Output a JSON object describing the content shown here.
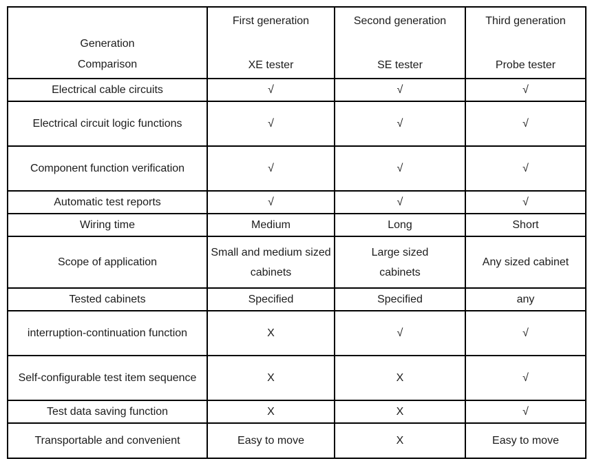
{
  "table": {
    "header": {
      "corner_line1": "Generation",
      "corner_line2": "Comparison",
      "columns": [
        {
          "generation": "First generation",
          "tester": "XE tester"
        },
        {
          "generation": "Second generation",
          "tester": "SE tester"
        },
        {
          "generation": "Third generation",
          "tester": "Probe tester"
        }
      ]
    },
    "glyphs": {
      "supported": "√",
      "unsupported": "X"
    },
    "rows": [
      {
        "feature": "Electrical cable circuits",
        "values": [
          "√",
          "√",
          "√"
        ]
      },
      {
        "feature": "Electrical circuit logic functions",
        "values": [
          "√",
          "√",
          "√"
        ]
      },
      {
        "feature": "Component function verification",
        "values": [
          "√",
          "√",
          "√"
        ]
      },
      {
        "feature": "Automatic test reports",
        "values": [
          "√",
          "√",
          "√"
        ]
      },
      {
        "feature": "Wiring time",
        "values": [
          "Medium",
          "Long",
          "Short"
        ]
      },
      {
        "feature": "Scope of application",
        "values": [
          "Small and medium sized cabinets",
          "Large sized cabinets",
          "Any sized cabinet"
        ]
      },
      {
        "feature": "Tested cabinets",
        "values": [
          "Specified",
          "Specified",
          "any"
        ]
      },
      {
        "feature": "interruption-continuation function",
        "values": [
          "X",
          "√",
          "√"
        ]
      },
      {
        "feature": "Self-configurable test item sequence",
        "values": [
          "X",
          "X",
          "√"
        ]
      },
      {
        "feature": "Test data saving function",
        "values": [
          "X",
          "X",
          "√"
        ]
      },
      {
        "feature": "Transportable and convenient",
        "values": [
          "Easy to move",
          "X",
          "Easy to move"
        ]
      }
    ]
  }
}
